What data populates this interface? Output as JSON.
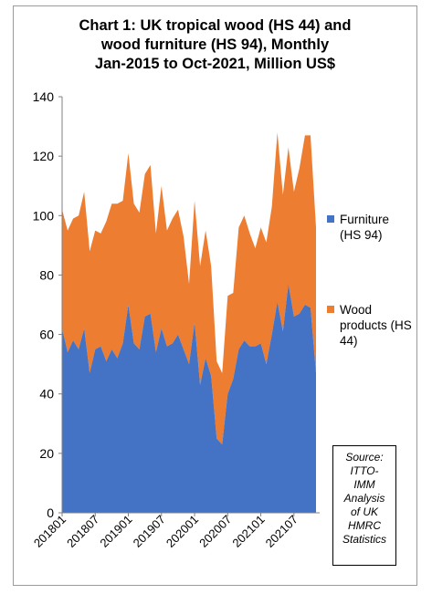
{
  "title_lines": [
    "Chart 1: UK tropical wood (HS 44) and",
    "wood furniture (HS 94), Monthly",
    "Jan-2015 to Oct-2021, Million US$"
  ],
  "source_lines": [
    "Source:",
    "ITTO-",
    "IMM",
    "Analysis",
    "of UK",
    "HMRC",
    "Statistics"
  ],
  "colors": {
    "furniture": "#4472c4",
    "wood": "#ed7d31"
  },
  "chart_data": {
    "type": "area",
    "stacked": true,
    "title": "Chart 1: UK tropical wood (HS 44) and wood furniture (HS 94), Monthly Jan-2015 to Oct-2021, Million US$",
    "xlabel": "",
    "ylabel": "",
    "ylim": [
      0,
      140
    ],
    "yticks": [
      0,
      20,
      40,
      60,
      80,
      100,
      120,
      140
    ],
    "xtick_labels": [
      "201801",
      "201807",
      "201901",
      "201907",
      "202001",
      "202007",
      "202101",
      "202107"
    ],
    "grid": false,
    "legend_position": "right",
    "series": [
      {
        "name": "Furniture (HS 94)",
        "values": [
          62,
          54,
          58,
          55,
          62,
          47,
          55,
          56,
          51,
          55,
          52,
          57,
          70,
          57,
          55,
          66,
          67,
          54,
          62,
          56,
          57,
          60,
          55,
          50,
          64,
          43,
          52,
          46,
          25,
          23,
          40,
          45,
          55,
          58,
          56,
          56,
          57,
          50,
          60,
          71,
          61,
          77,
          66,
          67,
          70,
          69,
          47
        ]
      },
      {
        "name": "Wood products (HS 44)",
        "values": [
          40,
          41,
          41,
          45,
          46,
          41,
          40,
          38,
          47,
          49,
          52,
          48,
          51,
          47,
          46,
          48,
          50,
          40,
          48,
          39,
          42,
          42,
          38,
          27,
          41,
          40,
          43,
          37,
          26,
          24,
          33,
          29,
          41,
          42,
          38,
          33,
          39,
          41,
          43,
          57,
          46,
          46,
          42,
          49,
          57,
          58,
          49
        ]
      }
    ]
  }
}
